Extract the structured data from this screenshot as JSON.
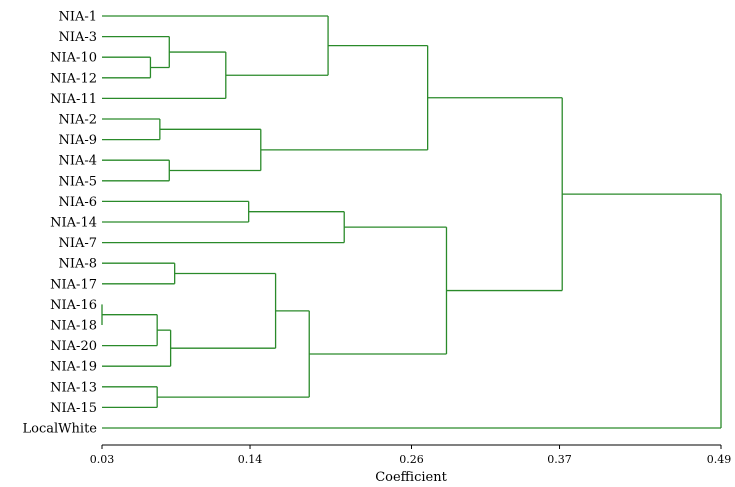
{
  "chart_data": {
    "type": "dendrogram",
    "xlabel": "Coefficient",
    "xlim": [
      0.03,
      0.49
    ],
    "ticks": [
      "0.03",
      "0.14",
      "0.26",
      "0.37",
      "0.49"
    ],
    "tick_values": [
      0.03,
      0.14,
      0.26,
      0.37,
      0.49
    ],
    "leaves": [
      "NIA-1",
      "NIA-3",
      "NIA-10",
      "NIA-12",
      "NIA-11",
      "NIA-2",
      "NIA-9",
      "NIA-4",
      "NIA-5",
      "NIA-6",
      "NIA-14",
      "NIA-7",
      "NIA-8",
      "NIA-17",
      "NIA-16",
      "NIA-18",
      "NIA-20",
      "NIA-19",
      "NIA-13",
      "NIA-15",
      "LocalWhite"
    ],
    "merges": [
      {
        "id": "m1",
        "a": "NIA-16",
        "b": "NIA-18",
        "height": 0.03
      },
      {
        "id": "m2",
        "a": "NIA-10",
        "b": "NIA-12",
        "height": 0.066
      },
      {
        "id": "m3",
        "a": "m1",
        "b": "NIA-20",
        "height": 0.071
      },
      {
        "id": "m4",
        "a": "NIA-13",
        "b": "NIA-15",
        "height": 0.071
      },
      {
        "id": "m5",
        "a": "NIA-2",
        "b": "NIA-9",
        "height": 0.073
      },
      {
        "id": "m6",
        "a": "NIA-3",
        "b": "m2",
        "height": 0.08
      },
      {
        "id": "m7",
        "a": "NIA-4",
        "b": "NIA-5",
        "height": 0.08
      },
      {
        "id": "m8",
        "a": "m3",
        "b": "NIA-19",
        "height": 0.081
      },
      {
        "id": "m9",
        "a": "NIA-8",
        "b": "NIA-17",
        "height": 0.084
      },
      {
        "id": "m10",
        "a": "m6",
        "b": "NIA-11",
        "height": 0.122
      },
      {
        "id": "m11",
        "a": "NIA-6",
        "b": "NIA-14",
        "height": 0.139
      },
      {
        "id": "m12",
        "a": "m5",
        "b": "m7",
        "height": 0.148
      },
      {
        "id": "m13",
        "a": "m9",
        "b": "m8",
        "height": 0.159
      },
      {
        "id": "m14",
        "a": "m13",
        "b": "m4",
        "height": 0.184
      },
      {
        "id": "m15",
        "a": "NIA-1",
        "b": "m10",
        "height": 0.198
      },
      {
        "id": "m16",
        "a": "m11",
        "b": "NIA-7",
        "height": 0.21
      },
      {
        "id": "m17",
        "a": "m15",
        "b": "m12",
        "height": 0.272
      },
      {
        "id": "m18",
        "a": "m16",
        "b": "m14",
        "height": 0.286
      },
      {
        "id": "m19",
        "a": "m17",
        "b": "m18",
        "height": 0.372
      },
      {
        "id": "m20",
        "a": "m19",
        "b": "LocalWhite",
        "height": 0.49
      }
    ],
    "colors": {
      "branch": "#2a8a2a",
      "text": "#000000",
      "background": "#ffffff"
    }
  }
}
